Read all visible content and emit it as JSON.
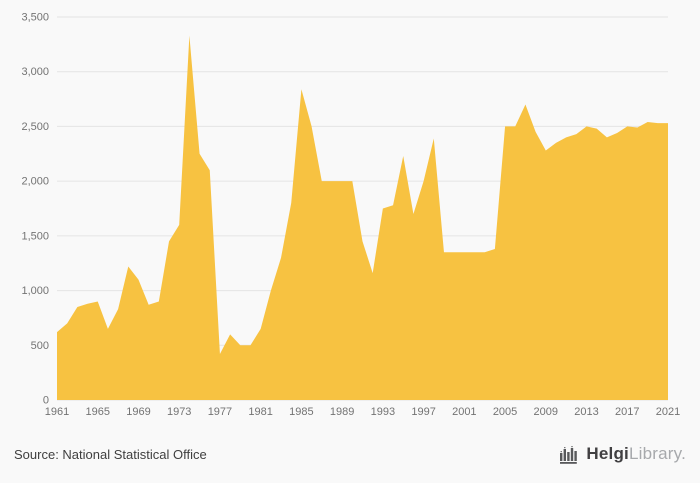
{
  "page": {
    "background": "#f9f9f9"
  },
  "chart_data": {
    "type": "area",
    "title": "",
    "xlabel": "",
    "ylabel": "",
    "grid": true,
    "legend": "none",
    "ylim": [
      0,
      3500
    ],
    "ytick_step": 500,
    "fill_color": "#f7c241",
    "gridline_color": "#e4e4e4",
    "axis_label_color": "#737373",
    "xticks": [
      1961,
      1965,
      1969,
      1973,
      1977,
      1981,
      1985,
      1989,
      1993,
      1997,
      2001,
      2005,
      2009,
      2013,
      2017,
      2021
    ],
    "x": [
      1961,
      1962,
      1963,
      1964,
      1965,
      1966,
      1967,
      1968,
      1969,
      1970,
      1971,
      1972,
      1973,
      1974,
      1975,
      1976,
      1977,
      1978,
      1979,
      1980,
      1981,
      1982,
      1983,
      1984,
      1985,
      1986,
      1987,
      1988,
      1989,
      1990,
      1991,
      1992,
      1993,
      1994,
      1995,
      1996,
      1997,
      1998,
      1999,
      2000,
      2001,
      2002,
      2003,
      2004,
      2005,
      2006,
      2007,
      2008,
      2009,
      2010,
      2011,
      2012,
      2013,
      2014,
      2015,
      2016,
      2017,
      2018,
      2019,
      2020,
      2021
    ],
    "values": [
      620,
      700,
      850,
      880,
      900,
      650,
      830,
      1220,
      1100,
      870,
      900,
      1450,
      1600,
      3330,
      2250,
      2100,
      420,
      600,
      500,
      500,
      650,
      1000,
      1300,
      1800,
      2840,
      2500,
      2000,
      2000,
      2000,
      2000,
      1450,
      1160,
      1750,
      1780,
      2230,
      1700,
      2000,
      2390,
      1350,
      1350,
      1350,
      1350,
      1350,
      1380,
      2500,
      2500,
      2700,
      2450,
      2280,
      2350,
      2400,
      2430,
      2500,
      2480,
      2400,
      2440,
      2500,
      2490,
      2540,
      2530,
      2530
    ]
  },
  "footer": {
    "source_label": "Source: National Statistical Office",
    "logo": {
      "brand_bold": "Helgi",
      "brand_light": "Library",
      "suffix": "."
    }
  }
}
